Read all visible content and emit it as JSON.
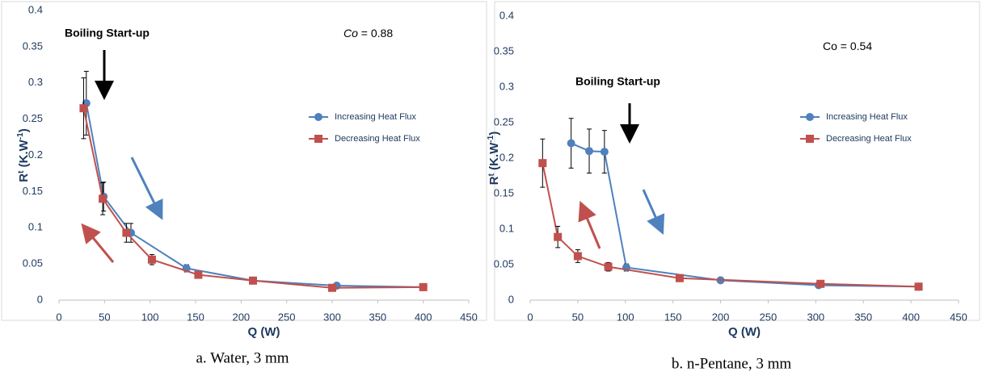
{
  "chart_data": [
    {
      "type": "line",
      "caption": "a. Water, 3 mm",
      "xlabel": "Q (W)",
      "ylabel": [
        "R",
        "t",
        " (K.W",
        "-1",
        ")"
      ],
      "annotations": [
        "Boiling Start-up"
      ],
      "co_label": [
        "Co",
        " = 0.88"
      ],
      "xlim": [
        0,
        450
      ],
      "xticks": [
        0,
        50,
        100,
        150,
        200,
        250,
        300,
        350,
        400,
        450
      ],
      "ylim": [
        0,
        0.4
      ],
      "yticks": [
        0,
        0.05,
        0.1,
        0.15,
        0.2,
        0.25,
        0.3,
        0.35,
        0.4
      ],
      "grid": false,
      "legend": "right",
      "series": [
        {
          "name": "Increasing Heat Flux",
          "color": "#4f81bd",
          "marker": "circle",
          "x": [
            30,
            49,
            79,
            140,
            213,
            305,
            400
          ],
          "values": [
            0.272,
            0.143,
            0.093,
            0.044,
            0.027,
            0.02,
            0.018
          ],
          "errors": [
            0.044,
            0.02,
            0.013,
            0.005,
            null,
            null,
            null
          ]
        },
        {
          "name": "Decreasing Heat Flux",
          "color": "#c0504d",
          "marker": "square",
          "x": [
            27,
            48,
            74,
            102,
            153,
            213,
            300,
            400
          ],
          "values": [
            0.265,
            0.14,
            0.093,
            0.056,
            0.035,
            0.027,
            0.017,
            0.018
          ],
          "errors": [
            0.042,
            0.022,
            0.013,
            0.007,
            null,
            null,
            null,
            null
          ]
        }
      ]
    },
    {
      "type": "line",
      "caption": "b. n-Pentane, 3 mm",
      "xlabel": "Q (W)",
      "ylabel": [
        "R",
        "t",
        " (K.W",
        "-1",
        ")"
      ],
      "annotations": [
        "Boiling Start-up"
      ],
      "co_label": [
        "Co = 0.54"
      ],
      "xlim": [
        0,
        450
      ],
      "xticks": [
        0,
        50,
        100,
        150,
        200,
        250,
        300,
        350,
        400,
        450
      ],
      "ylim": [
        0,
        0.4
      ],
      "yticks": [
        0,
        0.05,
        0.1,
        0.15,
        0.2,
        0.25,
        0.3,
        0.35,
        0.4
      ],
      "grid": false,
      "legend": "right",
      "series": [
        {
          "name": "Increasing Heat Flux",
          "color": "#4f81bd",
          "marker": "circle",
          "x": [
            43,
            62,
            78,
            101,
            200,
            303,
            408
          ],
          "values": [
            0.221,
            0.21,
            0.209,
            0.046,
            0.028,
            0.021,
            0.019
          ],
          "errors": [
            0.035,
            0.031,
            0.03,
            0.005,
            null,
            null,
            null
          ]
        },
        {
          "name": "Decreasing Heat Flux",
          "color": "#c0504d",
          "marker": "square",
          "x": [
            13,
            29,
            50,
            82,
            157,
            305,
            408
          ],
          "values": [
            0.193,
            0.089,
            0.062,
            0.047,
            0.031,
            0.023,
            0.019
          ],
          "errors": [
            0.034,
            0.015,
            0.009,
            0.006,
            null,
            null,
            null
          ]
        }
      ]
    }
  ]
}
